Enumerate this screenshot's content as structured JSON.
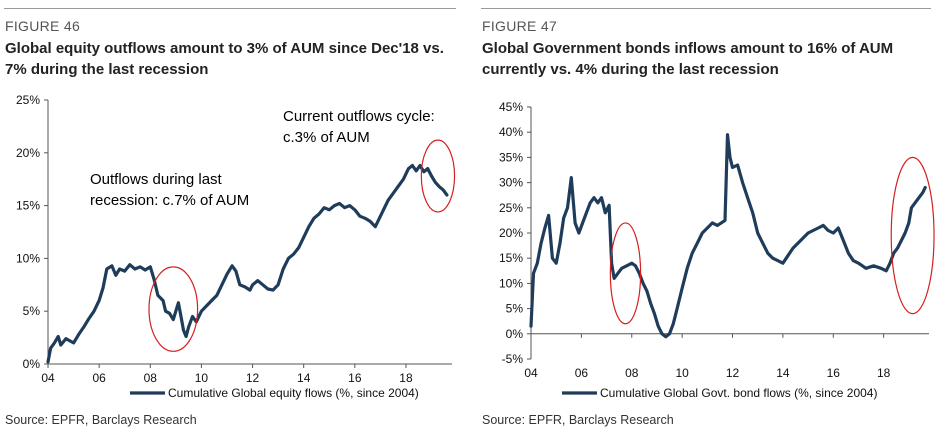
{
  "left": {
    "figure_label": "FIGURE 46",
    "title": "Global equity outflows amount to 3% of AUM since Dec'18 vs. 7% during the last recession",
    "source": "Source: EPFR, Barclays Research"
  },
  "right": {
    "figure_label": "FIGURE 47",
    "title": "Global Government bonds inflows amount to 16% of AUM currently vs. 4% during the last recession",
    "source": "Source: EPFR, Barclays Research"
  },
  "chart_data": [
    {
      "type": "line",
      "x_ticks": [
        "04",
        "06",
        "08",
        "10",
        "12",
        "14",
        "16",
        "18"
      ],
      "x_range": [
        2004,
        2019.8
      ],
      "y_ticks": [
        "0%",
        "5%",
        "10%",
        "15%",
        "20%",
        "25%"
      ],
      "ylim": [
        0,
        25
      ],
      "line_color": "#1f3c5a",
      "grid": false,
      "legend": {
        "position": "bottom",
        "label": "Cumulative Global equity flows (%, since 2004)"
      },
      "annotations": [
        {
          "lines": [
            "Outflows  during last",
            "recession:  c.7% of AUM"
          ]
        },
        {
          "lines": [
            "Current outflows  cycle:",
            "c.3% of AUM"
          ]
        }
      ],
      "highlight_ellipses": [
        {
          "x_center": 2008.9,
          "y_center": 5.2,
          "x_halfwidth": 0.95,
          "y_halfwidth": 4.0
        },
        {
          "x_center": 2019.25,
          "y_center": 17.8,
          "x_halfwidth": 0.65,
          "y_halfwidth": 3.4
        }
      ],
      "series": [
        {
          "points": [
            [
              2004.0,
              0.2
            ],
            [
              2004.1,
              1.5
            ],
            [
              2004.25,
              2.0
            ],
            [
              2004.4,
              2.6
            ],
            [
              2004.5,
              1.8
            ],
            [
              2004.7,
              2.4
            ],
            [
              2005.0,
              2.0
            ],
            [
              2005.2,
              2.8
            ],
            [
              2005.4,
              3.5
            ],
            [
              2005.6,
              4.3
            ],
            [
              2005.8,
              5.0
            ],
            [
              2006.0,
              6.0
            ],
            [
              2006.15,
              7.2
            ],
            [
              2006.3,
              9.0
            ],
            [
              2006.5,
              9.3
            ],
            [
              2006.65,
              8.4
            ],
            [
              2006.8,
              9.0
            ],
            [
              2007.0,
              8.8
            ],
            [
              2007.2,
              9.4
            ],
            [
              2007.4,
              9.0
            ],
            [
              2007.6,
              9.2
            ],
            [
              2007.8,
              8.9
            ],
            [
              2008.0,
              9.2
            ],
            [
              2008.15,
              8.0
            ],
            [
              2008.3,
              6.5
            ],
            [
              2008.5,
              6.0
            ],
            [
              2008.6,
              5.0
            ],
            [
              2008.75,
              4.8
            ],
            [
              2008.9,
              4.2
            ],
            [
              2009.0,
              5.0
            ],
            [
              2009.1,
              5.8
            ],
            [
              2009.2,
              4.5
            ],
            [
              2009.3,
              3.2
            ],
            [
              2009.4,
              2.6
            ],
            [
              2009.5,
              3.5
            ],
            [
              2009.65,
              4.5
            ],
            [
              2009.8,
              4.0
            ],
            [
              2010.0,
              5.0
            ],
            [
              2010.2,
              5.5
            ],
            [
              2010.4,
              6.0
            ],
            [
              2010.6,
              6.5
            ],
            [
              2010.8,
              7.5
            ],
            [
              2011.0,
              8.5
            ],
            [
              2011.2,
              9.3
            ],
            [
              2011.35,
              8.8
            ],
            [
              2011.5,
              7.5
            ],
            [
              2011.7,
              7.3
            ],
            [
              2011.9,
              7.0
            ],
            [
              2012.0,
              7.5
            ],
            [
              2012.2,
              7.9
            ],
            [
              2012.4,
              7.5
            ],
            [
              2012.6,
              7.1
            ],
            [
              2012.8,
              7.0
            ],
            [
              2013.0,
              7.5
            ],
            [
              2013.2,
              9.0
            ],
            [
              2013.4,
              10.0
            ],
            [
              2013.6,
              10.4
            ],
            [
              2013.8,
              11.0
            ],
            [
              2014.0,
              12.0
            ],
            [
              2014.2,
              13.0
            ],
            [
              2014.4,
              13.8
            ],
            [
              2014.6,
              14.2
            ],
            [
              2014.8,
              14.8
            ],
            [
              2015.0,
              14.6
            ],
            [
              2015.2,
              15.0
            ],
            [
              2015.4,
              15.2
            ],
            [
              2015.6,
              14.8
            ],
            [
              2015.8,
              15.0
            ],
            [
              2016.0,
              14.6
            ],
            [
              2016.2,
              14.0
            ],
            [
              2016.4,
              13.8
            ],
            [
              2016.6,
              13.5
            ],
            [
              2016.8,
              13.0
            ],
            [
              2017.0,
              14.0
            ],
            [
              2017.3,
              15.5
            ],
            [
              2017.6,
              16.5
            ],
            [
              2017.9,
              17.5
            ],
            [
              2018.1,
              18.5
            ],
            [
              2018.25,
              18.8
            ],
            [
              2018.4,
              18.3
            ],
            [
              2018.55,
              18.8
            ],
            [
              2018.7,
              18.2
            ],
            [
              2018.85,
              18.5
            ],
            [
              2019.0,
              17.8
            ],
            [
              2019.15,
              17.2
            ],
            [
              2019.3,
              16.8
            ],
            [
              2019.45,
              16.5
            ],
            [
              2019.6,
              16.0
            ]
          ]
        }
      ]
    },
    {
      "type": "line",
      "x_ticks": [
        "04",
        "06",
        "08",
        "10",
        "12",
        "14",
        "16",
        "18"
      ],
      "x_range": [
        2004,
        2019.8
      ],
      "y_ticks": [
        "-5%",
        "0%",
        "5%",
        "10%",
        "15%",
        "20%",
        "25%",
        "30%",
        "35%",
        "40%",
        "45%"
      ],
      "ylim": [
        -5,
        45
      ],
      "line_color": "#1f3c5a",
      "grid": false,
      "legend": {
        "position": "bottom",
        "label": "Cumulative Global Govt. bond flows (%, since 2004)"
      },
      "highlight_ellipses": [
        {
          "x_center": 2007.75,
          "y_center": 12.0,
          "x_halfwidth": 0.6,
          "y_halfwidth": 10.0
        },
        {
          "x_center": 2019.15,
          "y_center": 19.5,
          "x_halfwidth": 0.85,
          "y_halfwidth": 15.5
        }
      ],
      "series": [
        {
          "points": [
            [
              2004.0,
              1.5
            ],
            [
              2004.1,
              12.0
            ],
            [
              2004.25,
              14.0
            ],
            [
              2004.4,
              18.0
            ],
            [
              2004.55,
              21.0
            ],
            [
              2004.7,
              23.5
            ],
            [
              2004.85,
              15.0
            ],
            [
              2005.0,
              14.0
            ],
            [
              2005.15,
              18.0
            ],
            [
              2005.3,
              23.0
            ],
            [
              2005.45,
              25.0
            ],
            [
              2005.6,
              31.0
            ],
            [
              2005.75,
              22.0
            ],
            [
              2005.9,
              20.0
            ],
            [
              2006.05,
              22.0
            ],
            [
              2006.2,
              24.0
            ],
            [
              2006.35,
              26.0
            ],
            [
              2006.5,
              27.0
            ],
            [
              2006.65,
              26.0
            ],
            [
              2006.8,
              27.0
            ],
            [
              2006.95,
              24.0
            ],
            [
              2007.1,
              25.5
            ],
            [
              2007.2,
              14.0
            ],
            [
              2007.3,
              11.0
            ],
            [
              2007.45,
              12.0
            ],
            [
              2007.6,
              13.0
            ],
            [
              2007.8,
              13.5
            ],
            [
              2008.0,
              14.0
            ],
            [
              2008.15,
              13.5
            ],
            [
              2008.3,
              12.0
            ],
            [
              2008.45,
              10.0
            ],
            [
              2008.6,
              8.5
            ],
            [
              2008.75,
              6.0
            ],
            [
              2008.9,
              4.0
            ],
            [
              2009.05,
              1.5
            ],
            [
              2009.2,
              0.0
            ],
            [
              2009.35,
              -0.6
            ],
            [
              2009.5,
              0.0
            ],
            [
              2009.65,
              2.0
            ],
            [
              2009.8,
              5.0
            ],
            [
              2010.0,
              9.0
            ],
            [
              2010.2,
              13.0
            ],
            [
              2010.4,
              16.0
            ],
            [
              2010.6,
              18.0
            ],
            [
              2010.8,
              20.0
            ],
            [
              2011.0,
              21.0
            ],
            [
              2011.2,
              22.0
            ],
            [
              2011.4,
              21.5
            ],
            [
              2011.55,
              22.0
            ],
            [
              2011.7,
              22.5
            ],
            [
              2011.8,
              39.5
            ],
            [
              2011.9,
              35.0
            ],
            [
              2012.0,
              33.0
            ],
            [
              2012.2,
              33.5
            ],
            [
              2012.4,
              30.0
            ],
            [
              2012.6,
              27.0
            ],
            [
              2012.8,
              24.0
            ],
            [
              2013.0,
              20.0
            ],
            [
              2013.2,
              18.0
            ],
            [
              2013.4,
              16.0
            ],
            [
              2013.6,
              15.0
            ],
            [
              2013.8,
              14.5
            ],
            [
              2014.0,
              14.0
            ],
            [
              2014.2,
              15.5
            ],
            [
              2014.4,
              17.0
            ],
            [
              2014.6,
              18.0
            ],
            [
              2014.8,
              19.0
            ],
            [
              2015.0,
              20.0
            ],
            [
              2015.2,
              20.5
            ],
            [
              2015.4,
              21.0
            ],
            [
              2015.6,
              21.5
            ],
            [
              2015.8,
              20.5
            ],
            [
              2016.0,
              20.0
            ],
            [
              2016.2,
              21.0
            ],
            [
              2016.4,
              18.5
            ],
            [
              2016.6,
              16.0
            ],
            [
              2016.8,
              14.5
            ],
            [
              2017.0,
              14.0
            ],
            [
              2017.3,
              13.0
            ],
            [
              2017.6,
              13.5
            ],
            [
              2017.9,
              13.0
            ],
            [
              2018.1,
              12.5
            ],
            [
              2018.25,
              14.0
            ],
            [
              2018.4,
              16.0
            ],
            [
              2018.55,
              17.0
            ],
            [
              2018.7,
              18.5
            ],
            [
              2018.85,
              20.0
            ],
            [
              2019.0,
              22.0
            ],
            [
              2019.1,
              25.0
            ],
            [
              2019.25,
              26.0
            ],
            [
              2019.4,
              27.0
            ],
            [
              2019.55,
              28.0
            ],
            [
              2019.65,
              29.0
            ]
          ]
        }
      ]
    }
  ]
}
